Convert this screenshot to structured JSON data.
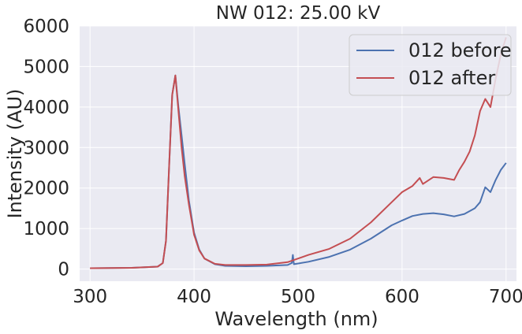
{
  "chart_data": {
    "type": "line",
    "title": "NW 012: 25.00 kV",
    "xlabel": "Wavelength (nm)",
    "ylabel": "Intensity (AU)",
    "xlim": [
      290,
      710
    ],
    "ylim": [
      -300,
      6000
    ],
    "xticks": [
      300,
      400,
      500,
      600,
      700
    ],
    "yticks": [
      0,
      1000,
      2000,
      3000,
      4000,
      5000,
      6000
    ],
    "xtick_labels": [
      "300",
      "400",
      "500",
      "600",
      "700"
    ],
    "ytick_labels": [
      "0",
      "1000",
      "2000",
      "3000",
      "4000",
      "5000",
      "6000"
    ],
    "grid": true,
    "legend_position": "top-right",
    "background": "#eaeaf2",
    "series": [
      {
        "name": "012 before",
        "color": "#4c72b0",
        "x": [
          300,
          340,
          365,
          370,
          373,
          376,
          379,
          382,
          385,
          388,
          391,
          395,
          400,
          405,
          410,
          420,
          430,
          450,
          470,
          490,
          494,
          495,
          496,
          510,
          530,
          550,
          570,
          590,
          600,
          610,
          620,
          630,
          640,
          650,
          660,
          670,
          675,
          680,
          685,
          690,
          695,
          700
        ],
        "y": [
          20,
          30,
          60,
          150,
          700,
          2500,
          4300,
          4780,
          4000,
          3300,
          2600,
          1700,
          900,
          480,
          260,
          120,
          80,
          70,
          80,
          100,
          150,
          350,
          120,
          180,
          300,
          480,
          750,
          1080,
          1200,
          1310,
          1360,
          1380,
          1350,
          1300,
          1360,
          1500,
          1650,
          2020,
          1900,
          2200,
          2450,
          2620
        ]
      },
      {
        "name": "012 after",
        "color": "#c44e52",
        "x": [
          300,
          340,
          365,
          370,
          373,
          376,
          379,
          382,
          385,
          388,
          391,
          395,
          400,
          405,
          410,
          420,
          430,
          450,
          470,
          490,
          510,
          530,
          550,
          570,
          590,
          600,
          610,
          617,
          620,
          630,
          640,
          650,
          655,
          660,
          665,
          670,
          675,
          680,
          685,
          690,
          695,
          700
        ],
        "y": [
          20,
          30,
          60,
          150,
          700,
          2500,
          4300,
          4780,
          3900,
          3000,
          2300,
          1600,
          850,
          460,
          260,
          130,
          100,
          100,
          110,
          170,
          350,
          500,
          750,
          1150,
          1650,
          1900,
          2050,
          2250,
          2100,
          2270,
          2250,
          2200,
          2450,
          2650,
          2900,
          3300,
          3900,
          4200,
          4000,
          4700,
          5300,
          5720
        ]
      }
    ]
  }
}
